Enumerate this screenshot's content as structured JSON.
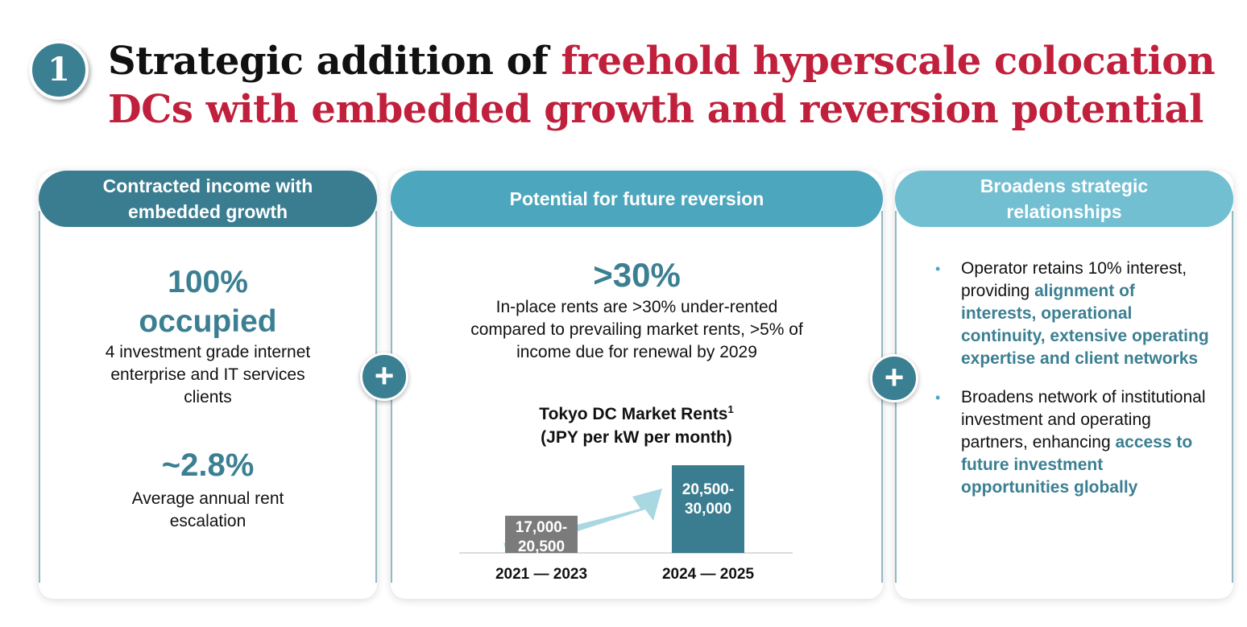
{
  "badge": "1",
  "title": {
    "part1": "Strategic addition of ",
    "part2": "freehold hyperscale colocation DCs with embedded growth and reversion potential"
  },
  "card1": {
    "header": "Contracted income with embedded growth",
    "stat1": "100% occupied",
    "stat1_desc": "4 investment grade internet enterprise and IT services clients",
    "stat2": "~2.8%",
    "stat2_desc": "Average annual rent escalation"
  },
  "card2": {
    "header": "Potential for future reversion",
    "stat": ">30%",
    "desc": "In-place rents are >30% under-rented compared to prevailing market rents, >5% of income due for renewal by 2029",
    "chart_title": "Tokyo DC Market Rents",
    "chart_title_sup": "1",
    "chart_subtitle": "(JPY per kW per month)"
  },
  "card3": {
    "bullet1_a": "Operator retains 10% interest, providing ",
    "bullet1_b": "alignment of interests, operational continuity, extensive operating expertise and client networks",
    "bullet2_a": "Broadens network of institutional investment and operating partners, enhancing ",
    "bullet2_b": "access to future investment opportunities globally"
  },
  "plus_symbol": "+",
  "bullet_symbol": "•",
  "colors": {
    "red": "#c0203c",
    "teal_dark": "#3a7d90",
    "teal_mid": "#4ca6bd",
    "teal_light": "#72bfd2",
    "arrow": "#a9d8e2",
    "bar_grey": "#7b7b7b"
  },
  "chart_data": {
    "type": "bar",
    "title": "Tokyo DC Market Rents",
    "subtitle": "(JPY per kW per month)",
    "categories": [
      "2021 — 2023",
      "2024 — 2025"
    ],
    "ranges": [
      [
        17000,
        20500
      ],
      [
        20500,
        30000
      ]
    ],
    "labels": [
      "17,000-\n20,500",
      "20,500-\n30,000"
    ],
    "colors": [
      "#7b7b7b",
      "#3a7d90"
    ],
    "arrow": true
  }
}
